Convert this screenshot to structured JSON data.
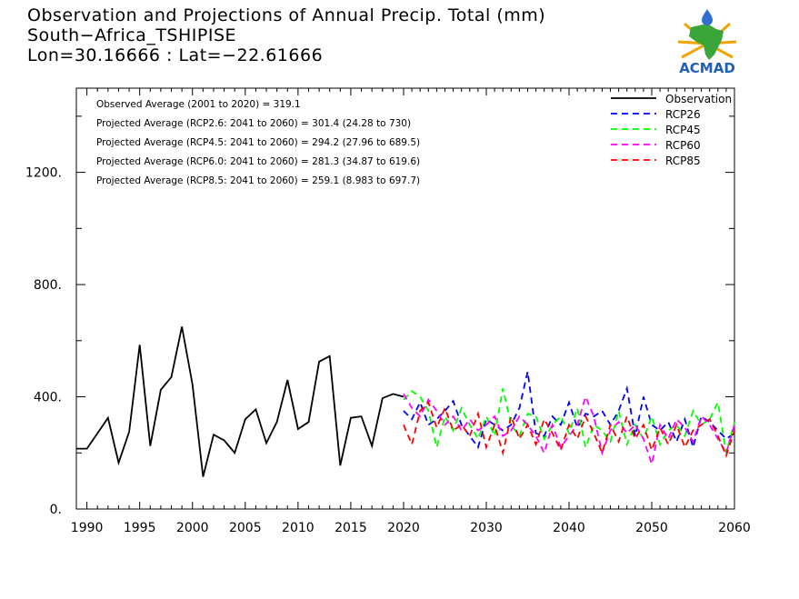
{
  "header": {
    "title_line1": "Observation and Projections of Annual Precip. Total (mm)",
    "title_line2": "South−Africa_TSHIPISE",
    "title_line3": "Lon=30.16666 : Lat=−22.61666"
  },
  "logo": {
    "text": "ACMAD",
    "colors": {
      "africa": "#3aa63a",
      "text": "#1f5fb8",
      "sun": "#f2a300",
      "drop": "#2f6fd0"
    }
  },
  "chart_data": {
    "type": "line",
    "xlim": [
      1989,
      2060
    ],
    "ylim": [
      0,
      1500
    ],
    "x_ticks": [
      {
        "value": 1990,
        "label": "1990"
      },
      {
        "value": 1995,
        "label": "1995"
      },
      {
        "value": 2000,
        "label": "2000"
      },
      {
        "value": 2005,
        "label": "2005"
      },
      {
        "value": 2010,
        "label": "2010"
      },
      {
        "value": 2015,
        "label": "2015"
      },
      {
        "value": 2020,
        "label": "2020"
      },
      {
        "value": 2030,
        "label": "2030"
      },
      {
        "value": 2040,
        "label": "2040"
      },
      {
        "value": 2050,
        "label": "2050"
      },
      {
        "value": 2060,
        "label": "2060"
      }
    ],
    "y_ticks": [
      {
        "value": 0,
        "label": "0."
      },
      {
        "value": 400,
        "label": "400."
      },
      {
        "value": 800,
        "label": "800."
      },
      {
        "value": 1200,
        "label": "1200."
      }
    ],
    "annotations": [
      "Observed Average (2001 to 2020) = 319.1",
      "Projected Average (RCP2.6: 2041 to 2060) = 301.4 (24.28 to 730)",
      "Projected Average (RCP4.5: 2041 to 2060) = 294.2 (27.96 to 689.5)",
      "Projected Average (RCP6.0: 2041 to 2060) = 281.3 (34.87 to 619.6)",
      "Projected Average (RCP8.5: 2041 to 2060) = 259.1 (8.983 to 697.7)"
    ],
    "legend_position": "top-right",
    "series": [
      {
        "name": "Observation",
        "color": "#000000",
        "dashed": false,
        "x": [
          1989,
          1990,
          1991,
          1992,
          1993,
          1994,
          1995,
          1996,
          1997,
          1998,
          1999,
          2000,
          2001,
          2002,
          2003,
          2004,
          2005,
          2006,
          2007,
          2008,
          2009,
          2010,
          2011,
          2012,
          2013,
          2014,
          2015,
          2016,
          2017,
          2018,
          2019,
          2020
        ],
        "y": [
          215,
          215,
          270,
          325,
          165,
          275,
          585,
          225,
          425,
          470,
          650,
          445,
          115,
          265,
          245,
          200,
          320,
          355,
          235,
          310,
          460,
          285,
          310,
          525,
          545,
          155,
          325,
          330,
          225,
          395,
          410,
          400
        ]
      },
      {
        "name": "RCP26",
        "color": "#0000ff",
        "dashed": true,
        "x": [
          2020,
          2021,
          2022,
          2023,
          2024,
          2025,
          2026,
          2027,
          2028,
          2029,
          2030,
          2031,
          2032,
          2033,
          2034,
          2035,
          2036,
          2037,
          2038,
          2039,
          2040,
          2041,
          2042,
          2043,
          2044,
          2045,
          2046,
          2047,
          2048,
          2049,
          2050,
          2051,
          2052,
          2053,
          2054,
          2055,
          2056,
          2057,
          2058,
          2059,
          2060
        ],
        "y": [
          350,
          320,
          380,
          300,
          320,
          350,
          385,
          300,
          260,
          220,
          320,
          300,
          280,
          300,
          360,
          490,
          270,
          260,
          330,
          300,
          380,
          290,
          340,
          330,
          350,
          300,
          350,
          430,
          260,
          400,
          300,
          280,
          310,
          240,
          320,
          220,
          330,
          310,
          280,
          250,
          270
        ]
      },
      {
        "name": "RCP45",
        "color": "#00ff00",
        "dashed": true,
        "x": [
          2020,
          2021,
          2022,
          2023,
          2024,
          2025,
          2026,
          2027,
          2028,
          2029,
          2030,
          2031,
          2032,
          2033,
          2034,
          2035,
          2036,
          2037,
          2038,
          2039,
          2040,
          2041,
          2042,
          2043,
          2044,
          2045,
          2046,
          2047,
          2048,
          2049,
          2050,
          2051,
          2052,
          2053,
          2054,
          2055,
          2056,
          2057,
          2058,
          2059,
          2060
        ],
        "y": [
          390,
          420,
          400,
          350,
          220,
          330,
          280,
          360,
          300,
          250,
          330,
          260,
          430,
          300,
          260,
          340,
          330,
          250,
          300,
          330,
          270,
          360,
          220,
          300,
          280,
          240,
          350,
          230,
          300,
          250,
          330,
          230,
          280,
          300,
          260,
          350,
          300,
          320,
          380,
          200,
          310
        ]
      },
      {
        "name": "RCP60",
        "color": "#ff00ff",
        "dashed": true,
        "x": [
          2020,
          2021,
          2022,
          2023,
          2024,
          2025,
          2026,
          2027,
          2028,
          2029,
          2030,
          2031,
          2032,
          2033,
          2034,
          2035,
          2036,
          2037,
          2038,
          2039,
          2040,
          2041,
          2042,
          2043,
          2044,
          2045,
          2046,
          2047,
          2048,
          2049,
          2050,
          2051,
          2052,
          2053,
          2054,
          2055,
          2056,
          2057,
          2058,
          2059,
          2060
        ],
        "y": [
          410,
          360,
          330,
          390,
          350,
          300,
          330,
          280,
          320,
          280,
          300,
          330,
          260,
          280,
          330,
          300,
          260,
          200,
          300,
          220,
          260,
          300,
          400,
          330,
          200,
          280,
          310,
          270,
          300,
          250,
          160,
          300,
          250,
          320,
          290,
          240,
          330,
          300,
          250,
          200,
          300
        ]
      },
      {
        "name": "RCP85",
        "color": "#ff0000",
        "dashed": true,
        "x": [
          2020,
          2021,
          2022,
          2023,
          2024,
          2025,
          2026,
          2027,
          2028,
          2029,
          2030,
          2031,
          2032,
          2033,
          2034,
          2035,
          2036,
          2037,
          2038,
          2039,
          2040,
          2041,
          2042,
          2043,
          2044,
          2045,
          2046,
          2047,
          2048,
          2049,
          2050,
          2051,
          2052,
          2053,
          2054,
          2055,
          2056,
          2057,
          2058,
          2059,
          2060
        ],
        "y": [
          300,
          230,
          350,
          380,
          290,
          360,
          280,
          300,
          260,
          340,
          220,
          300,
          200,
          330,
          250,
          300,
          230,
          320,
          270,
          210,
          300,
          250,
          330,
          270,
          200,
          300,
          240,
          330,
          250,
          300,
          210,
          290,
          230,
          300,
          220,
          280,
          300,
          320,
          260,
          190,
          280
        ]
      }
    ]
  }
}
